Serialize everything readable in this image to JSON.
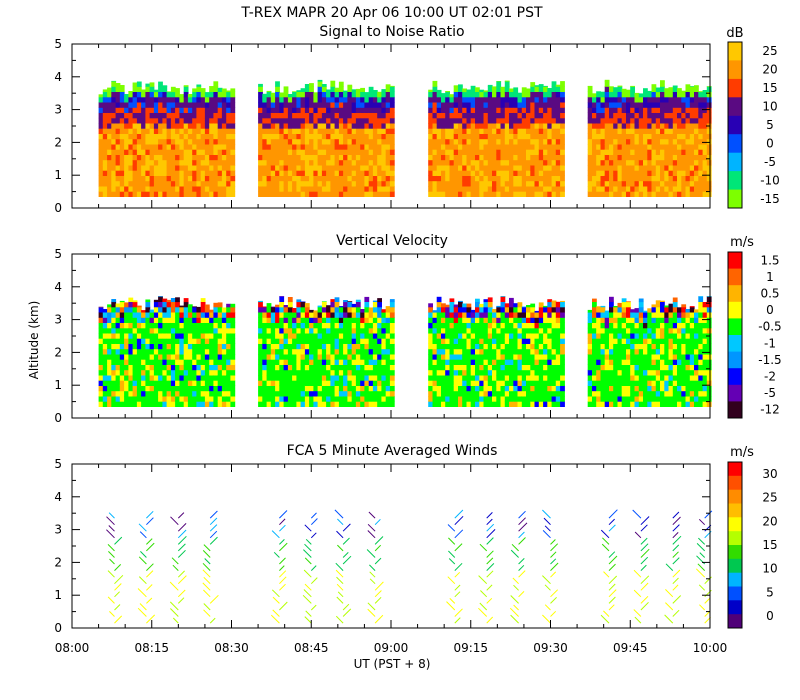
{
  "header": {
    "title": "T-REX  MAPR 20 Apr 06  10:00 UT  02:01  PST"
  },
  "x_axis": {
    "label": "UT  (PST + 8)",
    "ticks": [
      "08:00",
      "08:15",
      "08:30",
      "08:45",
      "09:00",
      "09:15",
      "09:30",
      "09:45",
      "10:00"
    ],
    "range_minutes": [
      0,
      120
    ]
  },
  "y_axis": {
    "label": "Altitude (km)",
    "ticks": [
      "0",
      "1",
      "2",
      "3",
      "4",
      "5"
    ],
    "range_km": [
      0,
      5
    ]
  },
  "segments_minutes": [
    [
      5,
      30
    ],
    [
      35,
      60
    ],
    [
      67,
      92
    ],
    [
      97,
      120
    ]
  ],
  "chart_data": [
    {
      "type": "heatmap",
      "title": "Signal to Noise Ratio",
      "unit": "dB",
      "colorbar_labels": [
        "25",
        "20",
        "15",
        "10",
        "5",
        "0",
        "-5",
        "-10",
        "-15"
      ],
      "colorbar_colors": [
        "#ffc800",
        "#ff9600",
        "#ff3c00",
        "#5a0a82",
        "#2800b4",
        "#0050ff",
        "#00b4ff",
        "#00e678",
        "#7dff00"
      ],
      "altitude_range_km": [
        0.35,
        3.6
      ]
    },
    {
      "type": "heatmap",
      "title": "Vertical Velocity",
      "unit": "m/s",
      "colorbar_labels": [
        "1.5",
        "1",
        "0.5",
        "0",
        "-0.5",
        "-1",
        "-1.5",
        "-2",
        "-5",
        "-12"
      ],
      "colorbar_colors": [
        "#ff0000",
        "#ff6400",
        "#ffb400",
        "#ffff00",
        "#00ff00",
        "#00c8ff",
        "#0096ff",
        "#0000ff",
        "#6400b4",
        "#32001e"
      ],
      "altitude_range_km": [
        0.35,
        3.4
      ]
    },
    {
      "type": "scatter",
      "title": "FCA 5 Minute Averaged Winds",
      "unit": "m/s",
      "colorbar_labels": [
        "30",
        "25",
        "20",
        "15",
        "10",
        "5",
        "0"
      ],
      "colorbar_colors": [
        "#ff0000",
        "#ff5000",
        "#ff8c00",
        "#ffbe00",
        "#ffff00",
        "#b4ff00",
        "#32dc00",
        "#00c850",
        "#00b4ff",
        "#0050ff",
        "#0000c8",
        "#500078"
      ],
      "barb_times_minutes": [
        8,
        14,
        20,
        26,
        39,
        45,
        51,
        57,
        72,
        78,
        84,
        90,
        101,
        107,
        113,
        119
      ],
      "altitude_range_km": [
        0,
        3.5
      ]
    }
  ]
}
